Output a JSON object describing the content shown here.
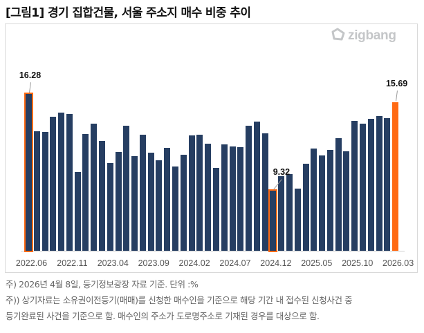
{
  "title": "[그림1] 경기 집합건물, 서울 주소지 매수 비중 추이",
  "logo": {
    "icon": "zigbang-logo-icon",
    "text": "zigbang"
  },
  "colors": {
    "bar": "#263e62",
    "highlight": "#ff6a13",
    "frame": "#d9d9d9",
    "axis_text": "#555555"
  },
  "x_tick_labels": [
    "2022.06",
    "2022.11",
    "2023.04",
    "2023.09",
    "2024.02",
    "2024.07",
    "2024.12",
    "2025.05",
    "2025.10",
    "2026.03"
  ],
  "annotations": [
    {
      "label": "16.28",
      "index": 0
    },
    {
      "label": "9.32",
      "index": 30
    },
    {
      "label": "15.69",
      "index": 45
    }
  ],
  "notes": [
    "주) 2026년 4월 8일, 등기정보광장 자료 기준. 단위 :%",
    "주)) 상기자료는 소유권이전등기(매매)를 신청한 매수인을 기준으로 해당 기간 내 접수된 신청사건 중",
    "등기완료된 사건을 기준으로 함. 매수인의 주소가 도로명주소로 기재된 경우를 대상으로 함."
  ],
  "chart_data": {
    "type": "bar",
    "title": "[그림1] 경기 집합건물, 서울 주소지 매수 비중 추이",
    "xlabel": "",
    "ylabel": "",
    "unit": "%",
    "ylim": [
      5,
      17
    ],
    "grid": false,
    "legend": null,
    "categories": [
      "2022.06",
      "2022.07",
      "2022.08",
      "2022.09",
      "2022.10",
      "2022.11",
      "2022.12",
      "2023.01",
      "2023.02",
      "2023.03",
      "2023.04",
      "2023.05",
      "2023.06",
      "2023.07",
      "2023.08",
      "2023.09",
      "2023.10",
      "2023.11",
      "2023.12",
      "2024.01",
      "2024.02",
      "2024.03",
      "2024.04",
      "2024.05",
      "2024.06",
      "2024.07",
      "2024.08",
      "2024.09",
      "2024.10",
      "2024.11",
      "2024.12",
      "2025.01",
      "2025.02",
      "2025.03",
      "2025.04",
      "2025.05",
      "2025.06",
      "2025.07",
      "2025.08",
      "2025.09",
      "2025.10",
      "2025.11",
      "2025.12",
      "2026.01",
      "2026.02",
      "2026.03"
    ],
    "values": [
      16.28,
      13.6,
      13.55,
      14.64,
      14.94,
      14.86,
      10.68,
      13.41,
      14.14,
      12.9,
      11.31,
      12.11,
      14.0,
      11.81,
      13.35,
      12.07,
      11.51,
      12.41,
      11.06,
      11.91,
      13.3,
      13.35,
      12.7,
      10.96,
      12.65,
      12.52,
      12.46,
      14.0,
      14.29,
      13.46,
      9.32,
      10.37,
      10.52,
      9.47,
      11.28,
      12.36,
      11.86,
      12.26,
      13.1,
      12.16,
      14.36,
      14.16,
      14.49,
      14.69,
      14.54,
      15.69
    ],
    "highlights": {
      "outlined": [
        0,
        30
      ],
      "filled_orange": [
        45
      ]
    },
    "data_labels": {
      "2022.06": 16.28,
      "2024.12": 9.32,
      "2026.03": 15.69
    }
  }
}
